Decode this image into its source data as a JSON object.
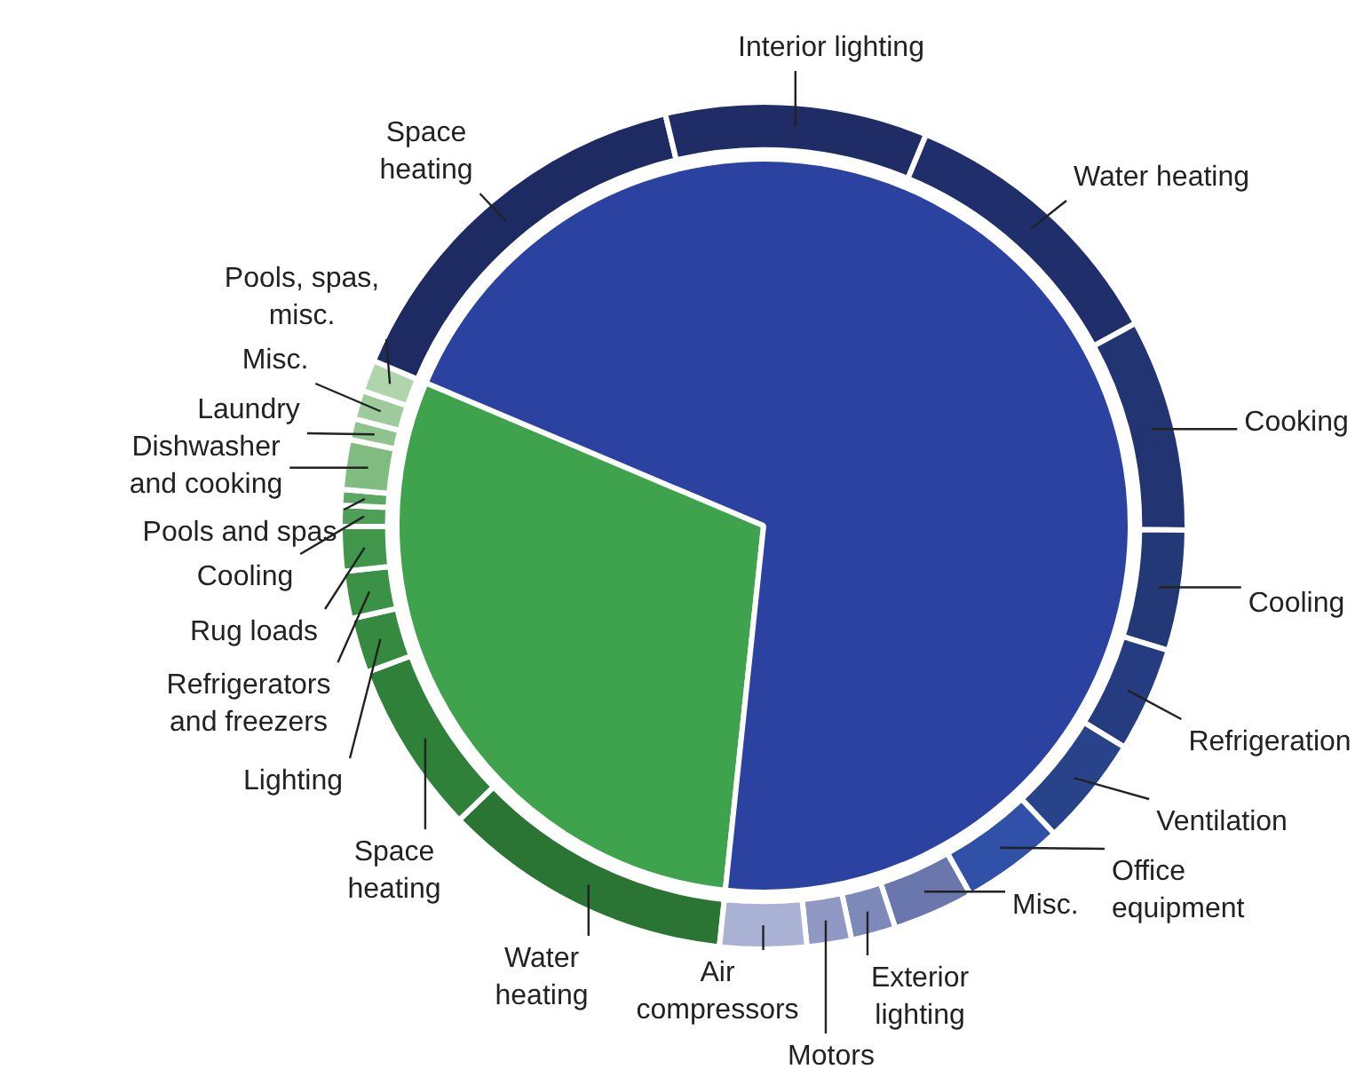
{
  "chart_data": [
    {
      "type": "pie",
      "categories": [
        null,
        null
      ],
      "values": [
        29.7,
        70.3
      ],
      "colors": [
        "#3fa34d",
        "#2b42a0"
      ]
    },
    {
      "type": "donut",
      "categories": [
        "Water heating",
        "Space heating",
        "Lighting",
        "Refrigerators and freezers",
        "Rug loads",
        "Cooling",
        "Pools and spas",
        "Dishwasher and cooking",
        "Laundry",
        "Misc.",
        "Pools, spas, misc.",
        "Space heating",
        "Interior lighting",
        "Water heating",
        "Cooking",
        "Cooling",
        "Refrigeration",
        "Ventilation",
        "Office equipment",
        "Misc.",
        "Exterior lighting",
        "Motors",
        "Air compressors"
      ],
      "values": [
        11.1,
        6.6,
        2.1,
        1.8,
        1.7,
        0.8,
        0.6,
        1.9,
        0.8,
        1.1,
        1.2,
        14.9,
        10,
        10.8,
        8.1,
        4.6,
        4.0,
        4.2,
        3.9,
        3.1,
        1.7,
        1.7,
        3.3
      ],
      "colors": [
        "#2a7434",
        "#2f8039",
        "#358a3f",
        "#3b9145",
        "#40964a",
        "#4f9f58",
        "#5ea866",
        "#80bb80",
        "#90c48e",
        "#9ecb9b",
        "#b0d5ac",
        "#1e2a62",
        "#1f2c66",
        "#202f6b",
        "#223472",
        "#233877",
        "#253d80",
        "#284389",
        "#3150a8",
        "#6a77ad",
        "#7d89b8",
        "#9099c4",
        "#a9b1d4"
      ]
    }
  ]
}
